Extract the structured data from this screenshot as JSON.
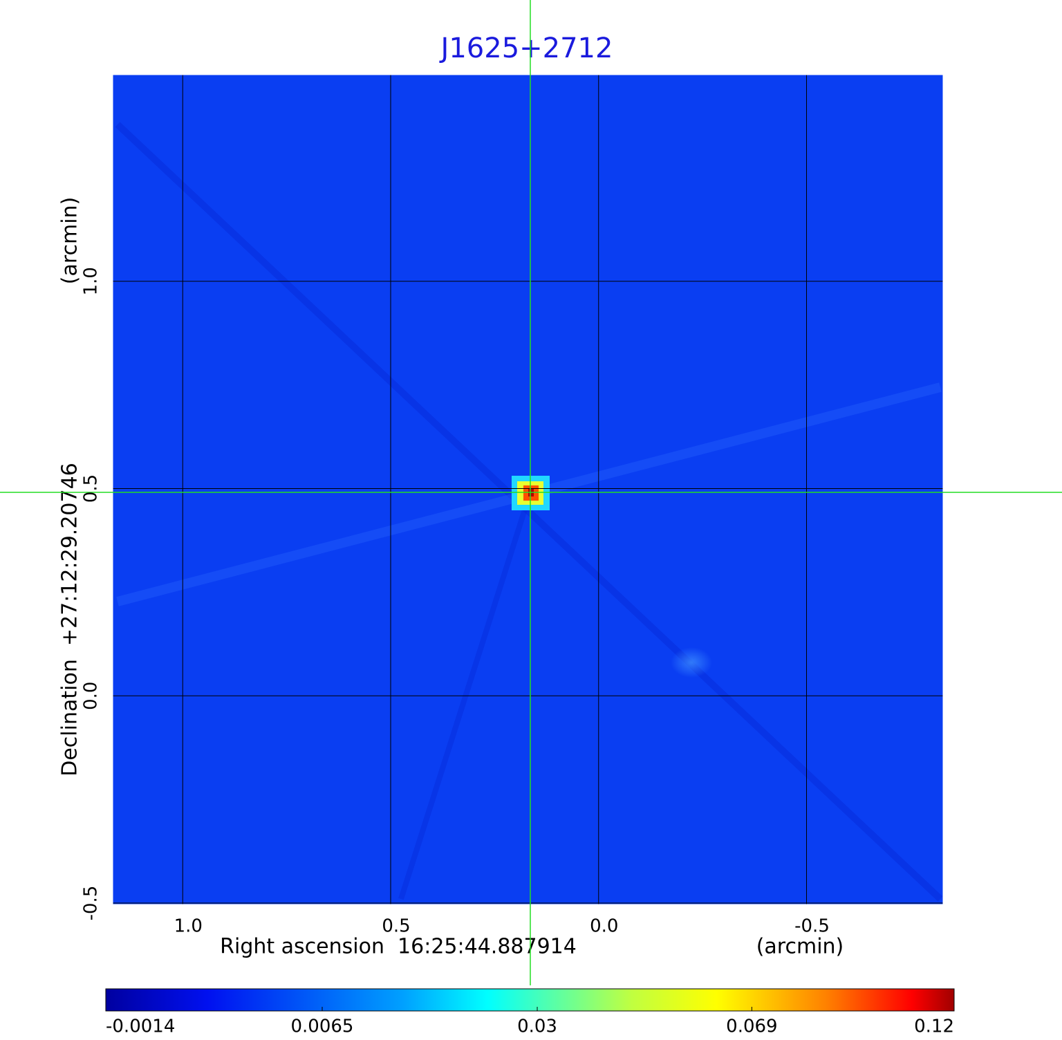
{
  "chart_data": {
    "type": "image",
    "title": "J1625+2712",
    "x_label": "Right ascension  16:25:44.887914",
    "x_unit": "(arcmin)",
    "y_label": "Declination  +27:12:29.20746",
    "y_unit": "(arcmin)",
    "xlim": [
      1.17,
      -0.83
    ],
    "ylim": [
      -0.505,
      1.5
    ],
    "xticks": [
      {
        "value": 1,
        "label": "1.0"
      },
      0.5,
      {
        "value": 0,
        "label": "0.0"
      },
      -0.5
    ],
    "yticks": [
      -0.5,
      {
        "value": 0,
        "label": "0.0"
      },
      0.5,
      {
        "value": 1,
        "label": "1.0"
      }
    ],
    "grid": true,
    "colorbar": {
      "lim": [
        -0.0014,
        0.12
      ],
      "scale": "sqrt",
      "ticks": [
        -0.0014,
        0.0065,
        0.03,
        0.069,
        0.12
      ]
    }
  }
}
